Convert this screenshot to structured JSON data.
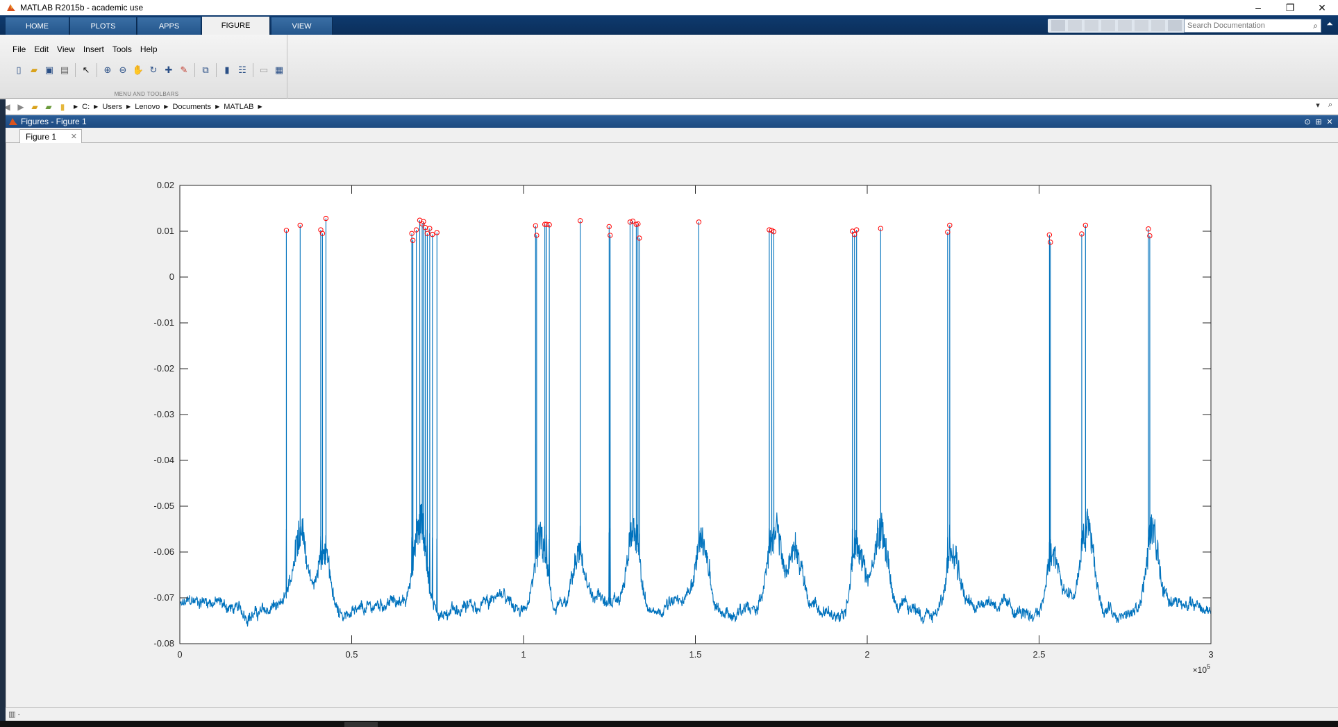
{
  "window": {
    "title": "MATLAB R2015b - academic use",
    "minimize": "–",
    "maximize": "❐",
    "close": "✕"
  },
  "ribbon": {
    "tabs": [
      {
        "label": "HOME"
      },
      {
        "label": "PLOTS"
      },
      {
        "label": "APPS"
      },
      {
        "label": "FIGURE"
      },
      {
        "label": "VIEW"
      }
    ],
    "active_tab": "FIGURE",
    "search_placeholder": "Search Documentation",
    "menu": [
      "File",
      "Edit",
      "View",
      "Insert",
      "Tools",
      "Help"
    ],
    "section_label": "MENU AND TOOLBARS"
  },
  "address": {
    "path": [
      "C:",
      "Users",
      "Lenovo",
      "Documents",
      "MATLAB"
    ]
  },
  "panel": {
    "title": "Figures - Figure 1",
    "tab": "Figure 1"
  },
  "colors": {
    "line": "#0072BD",
    "peaks": "#FF0000",
    "ribbon_blue": "#0e3a6e"
  },
  "chart_data": {
    "type": "line",
    "title": "",
    "xlabel": "",
    "ylabel": "",
    "xlim": [
      0,
      300000
    ],
    "ylim": [
      -0.08,
      0.02
    ],
    "x_exponent_label": "×10",
    "x_exponent_sup": "5",
    "xticks": [
      0,
      50000,
      100000,
      150000,
      200000,
      250000,
      300000
    ],
    "xtick_labels": [
      "0",
      "0.5",
      "1",
      "1.5",
      "2",
      "2.5",
      "3"
    ],
    "yticks": [
      0.02,
      0.01,
      0,
      -0.01,
      -0.02,
      -0.03,
      -0.04,
      -0.05,
      -0.06,
      -0.07,
      -0.08
    ],
    "ytick_labels": [
      "0.02",
      "0.01",
      "0",
      "-0.01",
      "-0.02",
      "-0.03",
      "-0.04",
      "-0.05",
      "-0.06",
      "-0.07",
      "-0.08"
    ],
    "baseline": -0.072,
    "spikes": [
      {
        "x": 31000,
        "peak": 0.0102
      },
      {
        "x": 35000,
        "peak": 0.0113
      },
      {
        "x": 41000,
        "peak": 0.0103
      },
      {
        "x": 41500,
        "peak": 0.0095
      },
      {
        "x": 42500,
        "peak": 0.0128
      },
      {
        "x": 67500,
        "peak": 0.0095
      },
      {
        "x": 67800,
        "peak": 0.008
      },
      {
        "x": 68800,
        "peak": 0.0103
      },
      {
        "x": 69800,
        "peak": 0.0124
      },
      {
        "x": 70500,
        "peak": 0.0116
      },
      {
        "x": 70900,
        "peak": 0.0121
      },
      {
        "x": 71400,
        "peak": 0.0108
      },
      {
        "x": 72000,
        "peak": 0.0095
      },
      {
        "x": 72700,
        "peak": 0.0106
      },
      {
        "x": 73500,
        "peak": 0.0093
      },
      {
        "x": 74800,
        "peak": 0.0097
      },
      {
        "x": 103500,
        "peak": 0.0112
      },
      {
        "x": 103800,
        "peak": 0.0091
      },
      {
        "x": 106200,
        "peak": 0.0115
      },
      {
        "x": 106700,
        "peak": 0.0115
      },
      {
        "x": 107500,
        "peak": 0.0114
      },
      {
        "x": 116500,
        "peak": 0.0123
      },
      {
        "x": 124900,
        "peak": 0.011
      },
      {
        "x": 125200,
        "peak": 0.0091
      },
      {
        "x": 131000,
        "peak": 0.012
      },
      {
        "x": 131800,
        "peak": 0.0122
      },
      {
        "x": 132800,
        "peak": 0.0115
      },
      {
        "x": 133300,
        "peak": 0.0116
      },
      {
        "x": 133700,
        "peak": 0.0085
      },
      {
        "x": 151000,
        "peak": 0.012
      },
      {
        "x": 171500,
        "peak": 0.0103
      },
      {
        "x": 172200,
        "peak": 0.0102
      },
      {
        "x": 172800,
        "peak": 0.0099
      },
      {
        "x": 195700,
        "peak": 0.01
      },
      {
        "x": 196300,
        "peak": 0.0093
      },
      {
        "x": 196900,
        "peak": 0.0103
      },
      {
        "x": 203900,
        "peak": 0.0106
      },
      {
        "x": 223400,
        "peak": 0.0098
      },
      {
        "x": 224000,
        "peak": 0.0113
      },
      {
        "x": 253000,
        "peak": 0.0092
      },
      {
        "x": 253300,
        "peak": 0.0076
      },
      {
        "x": 262400,
        "peak": 0.0094
      },
      {
        "x": 263500,
        "peak": 0.0113
      },
      {
        "x": 281800,
        "peak": 0.0105
      },
      {
        "x": 282200,
        "peak": 0.009
      }
    ],
    "bursts": [
      {
        "x": 35000,
        "height": 0.016
      },
      {
        "x": 42000,
        "height": 0.012
      },
      {
        "x": 70000,
        "height": 0.018
      },
      {
        "x": 105000,
        "height": 0.016
      },
      {
        "x": 116000,
        "height": 0.01
      },
      {
        "x": 132000,
        "height": 0.018
      },
      {
        "x": 152000,
        "height": 0.014
      },
      {
        "x": 173000,
        "height": 0.016
      },
      {
        "x": 179000,
        "height": 0.012
      },
      {
        "x": 197000,
        "height": 0.014
      },
      {
        "x": 204000,
        "height": 0.016
      },
      {
        "x": 225000,
        "height": 0.014
      },
      {
        "x": 254000,
        "height": 0.012
      },
      {
        "x": 264000,
        "height": 0.016
      },
      {
        "x": 283000,
        "height": 0.016
      }
    ]
  }
}
